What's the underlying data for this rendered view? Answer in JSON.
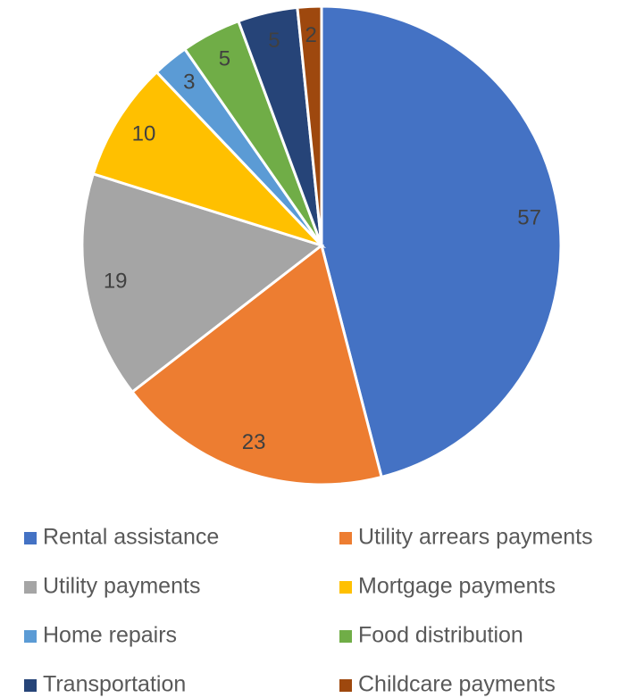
{
  "chart_data": {
    "type": "pie",
    "categories": [
      "Rental assistance",
      "Utility arrears payments",
      "Utility payments",
      "Mortgage payments",
      "Home repairs",
      "Food distribution",
      "Transportation",
      "Childcare payments"
    ],
    "values": [
      57,
      23,
      19,
      10,
      3,
      5,
      5,
      2
    ],
    "colors": [
      "#4472c4",
      "#ed7d31",
      "#a5a5a5",
      "#ffc000",
      "#5b9bd5",
      "#70ad47",
      "#264478",
      "#9e480e"
    ],
    "legend": "bottom"
  }
}
